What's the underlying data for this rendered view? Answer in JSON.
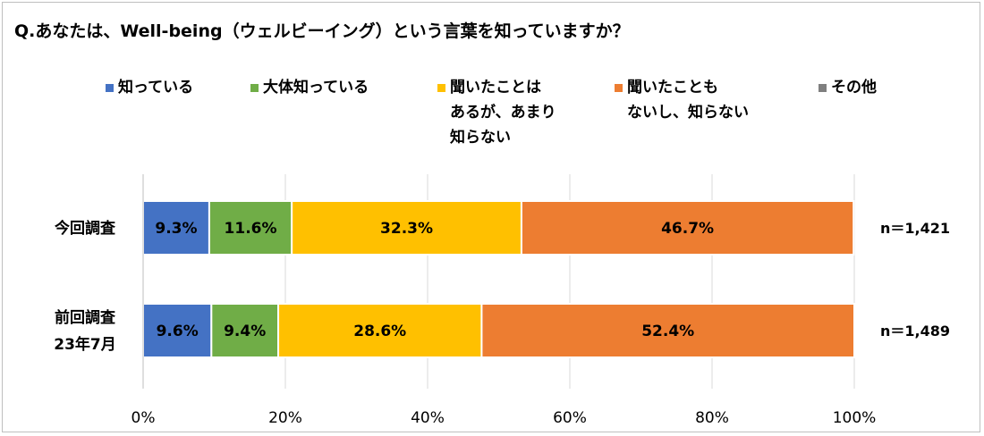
{
  "chart_data": {
    "type": "bar",
    "orientation": "horizontal",
    "stacked": true,
    "title": "Q.あなたは、Well-being（ウェルビーイング）という言葉を知っていますか？",
    "categories": [
      {
        "lines": [
          "今回調査"
        ],
        "n": "n＝1,421"
      },
      {
        "lines": [
          "前回調査",
          "23年7月"
        ],
        "n": "n＝1,489"
      }
    ],
    "series": [
      {
        "name": "知っている",
        "legend_lines": [
          "知っている"
        ],
        "color": "#4472c4",
        "values": [
          9.3,
          9.6
        ],
        "labels": [
          "9.3%",
          "9.6%"
        ]
      },
      {
        "name": "大体知っている",
        "legend_lines": [
          "大体知っている"
        ],
        "color": "#70ad47",
        "values": [
          11.6,
          9.4
        ],
        "labels": [
          "11.6%",
          "9.4%"
        ]
      },
      {
        "name": "聞いたことはあるが、あまり知らない",
        "legend_lines": [
          "聞いたことは",
          "あるが、あまり",
          "知らない"
        ],
        "color": "#ffc000",
        "values": [
          32.3,
          28.6
        ],
        "labels": [
          "32.3%",
          "28.6%"
        ]
      },
      {
        "name": "聞いたこともないし、知らない",
        "legend_lines": [
          "聞いたことも",
          "ないし、知らない"
        ],
        "color": "#ed7d31",
        "values": [
          46.7,
          52.4
        ],
        "labels": [
          "46.7%",
          "52.4%"
        ]
      },
      {
        "name": "その他",
        "legend_lines": [
          "その他"
        ],
        "color": "#7f7f7f",
        "values": [
          0,
          0
        ],
        "labels": [
          "",
          ""
        ]
      }
    ],
    "xlim": [
      0,
      100
    ],
    "xticks": [
      0,
      20,
      40,
      60,
      80,
      100
    ],
    "xtick_labels": [
      "0%",
      "20%",
      "40%",
      "60%",
      "80%",
      "100%"
    ],
    "grid": true,
    "legend": "top"
  }
}
